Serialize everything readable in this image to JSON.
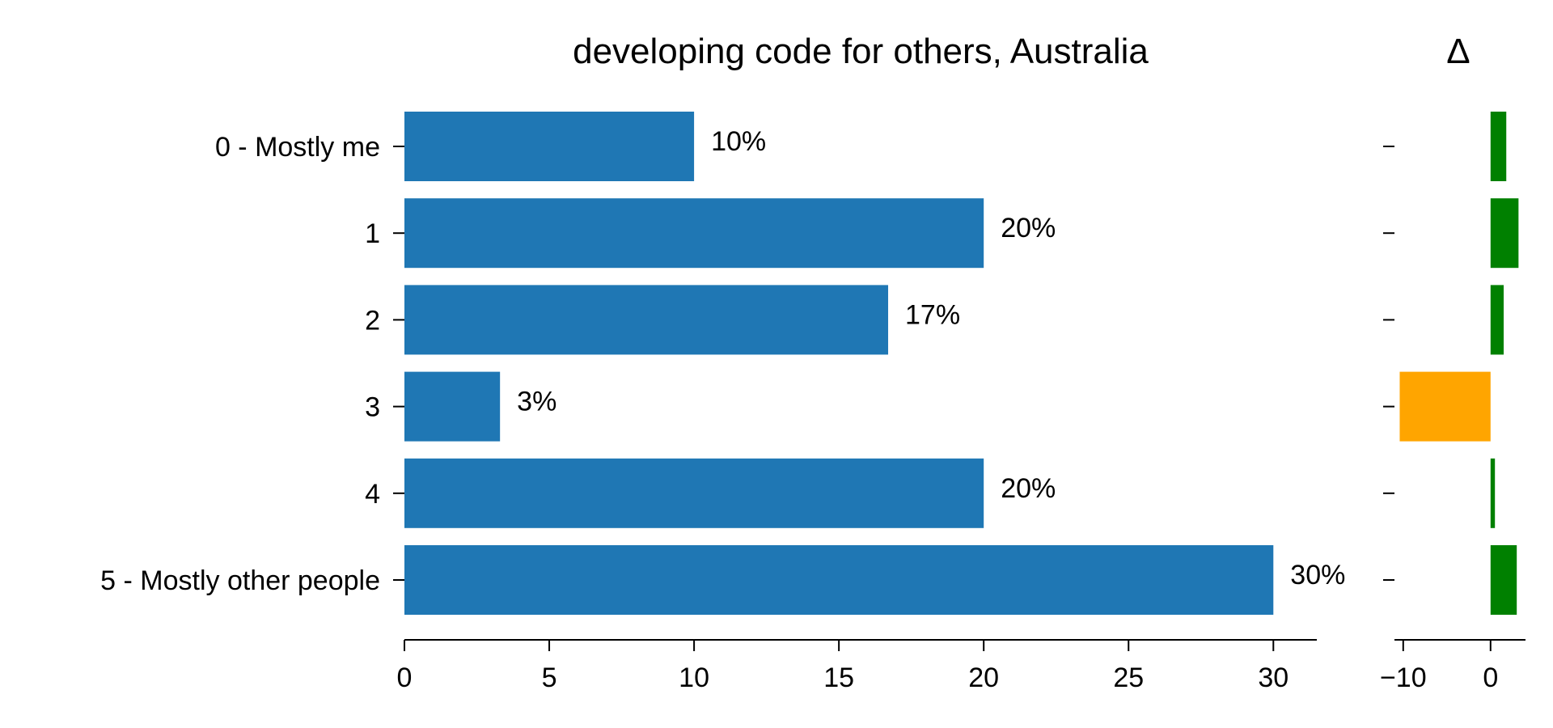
{
  "chart_data": [
    {
      "type": "bar",
      "orientation": "horizontal",
      "title": "developing code for others, Australia",
      "categories": [
        "0 - Mostly me",
        "1",
        "2",
        "3",
        "4",
        "5 - Mostly other people"
      ],
      "values": [
        10.0,
        20.0,
        16.7,
        3.3,
        20.0,
        30.0
      ],
      "data_labels": [
        "10%",
        "20%",
        "17%",
        "3%",
        "20%",
        "30%"
      ],
      "xlim": [
        0,
        31.5
      ],
      "xticks": [
        0,
        5,
        10,
        15,
        20,
        25,
        30
      ],
      "xtick_labels": [
        "0",
        "5",
        "10",
        "15",
        "20",
        "25",
        "30"
      ],
      "color": "#1f77b4",
      "grid": false
    },
    {
      "type": "bar",
      "orientation": "horizontal",
      "title": "Δ",
      "categories": [
        "0 - Mostly me",
        "1",
        "2",
        "3",
        "4",
        "5 - Mostly other people"
      ],
      "values": [
        1.8,
        3.2,
        1.5,
        -10.4,
        0.5,
        3.0
      ],
      "xlim": [
        -11,
        4
      ],
      "xticks": [
        -10,
        0
      ],
      "xtick_labels": [
        "−10",
        "0"
      ],
      "positive_color": "#008000",
      "negative_color": "#ffa500",
      "grid": false
    }
  ]
}
